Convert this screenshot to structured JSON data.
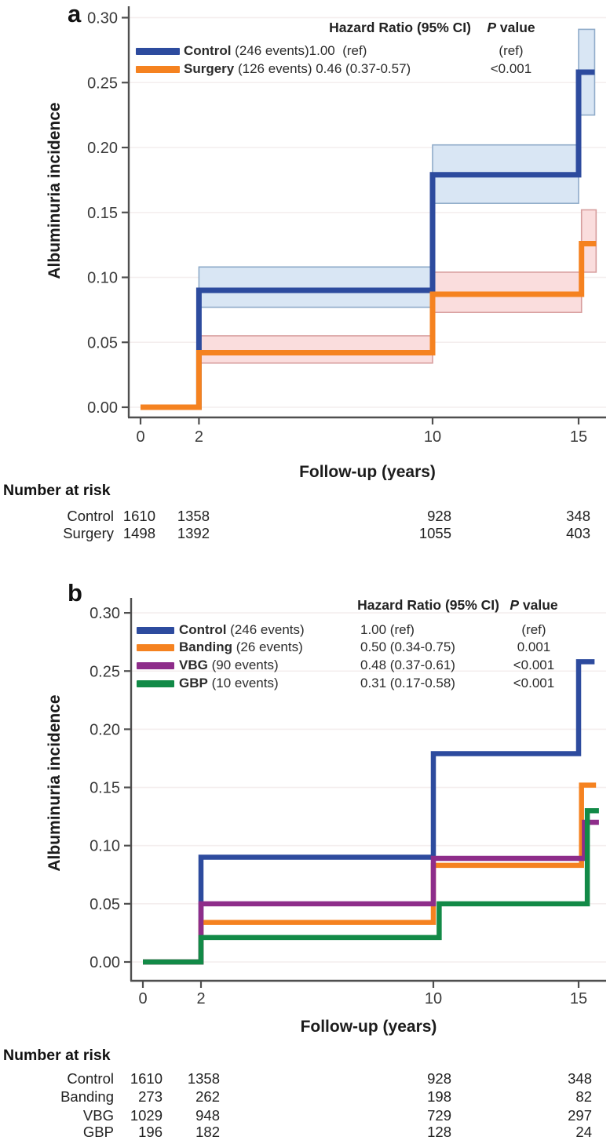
{
  "figure": {
    "panels": [
      {
        "label": "a",
        "legend": {
          "hr_header": "Hazard Ratio (95% CI)",
          "p_header_italic": "P",
          "p_header_rest": " value",
          "rows": [
            {
              "name": "Control",
              "events": "(246 events)",
              "hr": "1.00  (ref)",
              "p": "(ref)"
            },
            {
              "name": "Surgery",
              "events": "(126 events) ",
              "hr": "0.46 (0.37-0.57)",
              "p": "<0.001"
            }
          ]
        },
        "risk": {
          "title": "Number at risk",
          "rows": [
            {
              "label": "Control",
              "values": [
                "1610",
                "1358",
                "928",
                "348"
              ]
            },
            {
              "label": "Surgery",
              "values": [
                "1498",
                "1392",
                "1055",
                "403"
              ]
            }
          ]
        }
      },
      {
        "label": "b",
        "legend": {
          "hr_header": "Hazard Ratio (95% CI)",
          "p_header_italic": "P",
          "p_header_rest": " value",
          "rows": [
            {
              "name": "Control",
              "events": "(246 events)",
              "hr": "1.00 (ref)",
              "p": "(ref)"
            },
            {
              "name": "Banding",
              "events": "(26 events)",
              "hr": "0.50 (0.34-0.75)",
              "p": "0.001"
            },
            {
              "name": "VBG",
              "events": "(90 events)",
              "hr": "0.48 (0.37-0.61)",
              "p": "<0.001"
            },
            {
              "name": "GBP",
              "events": "(10 events)",
              "hr": "0.31 (0.17-0.58)",
              "p": "<0.001"
            }
          ]
        },
        "risk": {
          "title": "Number at risk",
          "rows": [
            {
              "label": "Control",
              "values": [
                "1610",
                "1358",
                "928",
                "348"
              ]
            },
            {
              "label": "Banding",
              "values": [
                "273",
                "262",
                "198",
                "82"
              ]
            },
            {
              "label": "VBG",
              "values": [
                "1029",
                "948",
                "729",
                "297"
              ]
            },
            {
              "label": "GBP",
              "values": [
                "196",
                "182",
                "128",
                "24"
              ]
            }
          ]
        }
      }
    ]
  },
  "chart_data": [
    {
      "type": "step",
      "panel": "a",
      "xlabel": "Follow-up (years)",
      "ylabel": "Albuminuria incidence",
      "x_ticks": [
        0,
        2,
        10,
        15
      ],
      "y_ticks": [
        "0.00",
        "0.05",
        "0.10",
        "0.15",
        "0.20",
        "0.25",
        "0.30"
      ],
      "y_tick_values": [
        0,
        0.05,
        0.1,
        0.15,
        0.2,
        0.25,
        0.3
      ],
      "xlim": [
        0,
        15.6
      ],
      "ylim": [
        0,
        0.3
      ],
      "grid": true,
      "legend_position": "top-right",
      "series": [
        {
          "name": "Control",
          "color": "#2d4b9e",
          "ci_fill": "#d9e6f4",
          "ci_edge": "#8fabc9",
          "steps": [
            [
              0,
              0
            ],
            [
              2,
              0.09
            ],
            [
              10,
              0.179
            ],
            [
              15,
              0.258
            ]
          ],
          "end": 15.55,
          "ci": [
            [
              2,
              10,
              0.077,
              0.108
            ],
            [
              10,
              15,
              0.157,
              0.202
            ],
            [
              15,
              15.55,
              0.225,
              0.291
            ]
          ]
        },
        {
          "name": "Surgery",
          "color": "#f58220",
          "ci_fill": "#fadddd",
          "ci_edge": "#d79e9e",
          "steps": [
            [
              0,
              0
            ],
            [
              2,
              0.042
            ],
            [
              10,
              0.087
            ],
            [
              15.1,
              0.126
            ]
          ],
          "end": 15.6,
          "ci": [
            [
              2,
              10,
              0.034,
              0.055
            ],
            [
              10,
              15.1,
              0.073,
              0.104
            ],
            [
              15.1,
              15.6,
              0.104,
              0.152
            ]
          ]
        }
      ]
    },
    {
      "type": "step",
      "panel": "b",
      "xlabel": "Follow-up (years)",
      "ylabel": "Albuminuria incidence",
      "x_ticks": [
        0,
        2,
        10,
        15
      ],
      "y_ticks": [
        "0.00",
        "0.05",
        "0.10",
        "0.15",
        "0.20",
        "0.25",
        "0.30"
      ],
      "y_tick_values": [
        0,
        0.05,
        0.1,
        0.15,
        0.2,
        0.25,
        0.3
      ],
      "xlim": [
        0,
        15.7
      ],
      "ylim": [
        0,
        0.3
      ],
      "grid": true,
      "legend_position": "top-right",
      "series": [
        {
          "name": "Control",
          "color": "#2d4b9e",
          "steps": [
            [
              0,
              0
            ],
            [
              2,
              0.09
            ],
            [
              10,
              0.179
            ],
            [
              15,
              0.258
            ]
          ],
          "end": 15.55,
          "ci": []
        },
        {
          "name": "Banding",
          "color": "#f58220",
          "steps": [
            [
              0,
              0
            ],
            [
              2,
              0.034
            ],
            [
              10,
              0.083
            ],
            [
              15.1,
              0.152
            ]
          ],
          "end": 15.6,
          "ci": []
        },
        {
          "name": "VBG",
          "color": "#8e2d8a",
          "steps": [
            [
              0,
              0
            ],
            [
              2,
              0.05
            ],
            [
              10,
              0.089
            ],
            [
              15.2,
              0.12
            ]
          ],
          "end": 15.7,
          "ci": []
        },
        {
          "name": "GBP",
          "color": "#128a47",
          "steps": [
            [
              0,
              0
            ],
            [
              2,
              0.021
            ],
            [
              10.2,
              0.05
            ],
            [
              15.3,
              0.13
            ]
          ],
          "end": 15.7,
          "ci": []
        }
      ]
    }
  ]
}
